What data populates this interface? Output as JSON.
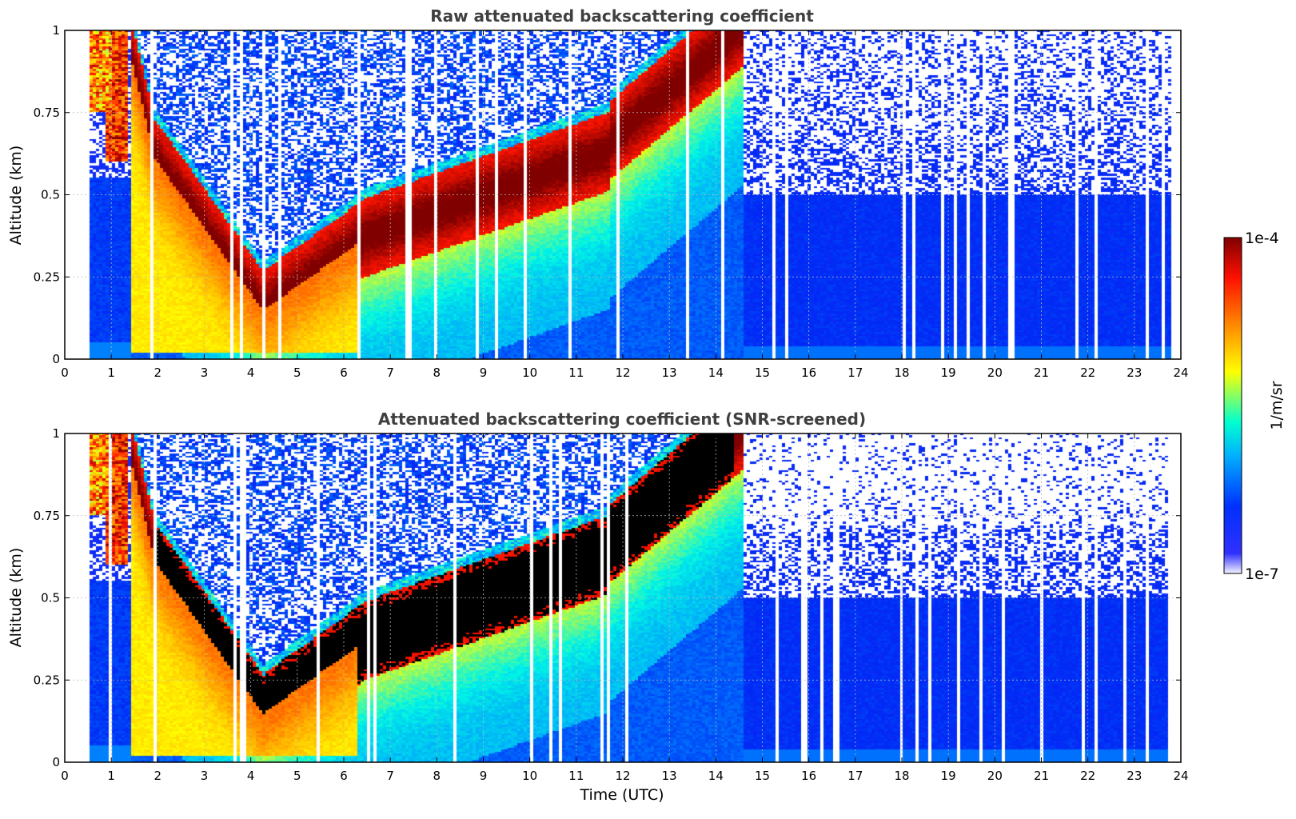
{
  "chart_data": [
    {
      "type": "heatmap",
      "title": "Raw attenuated backscattering coefficient",
      "xlabel": "",
      "ylabel": "Altitude (km)",
      "xlim": [
        0,
        24
      ],
      "ylim": [
        0,
        1
      ],
      "xticks": [
        "0",
        "1",
        "2",
        "3",
        "4",
        "5",
        "6",
        "7",
        "8",
        "9",
        "10",
        "11",
        "12",
        "13",
        "14",
        "15",
        "16",
        "17",
        "18",
        "19",
        "20",
        "21",
        "22",
        "23",
        "24"
      ],
      "yticks": [
        "0",
        "0.25",
        "0.5",
        "0.75",
        "1"
      ],
      "grid": true,
      "screened": false
    },
    {
      "type": "heatmap",
      "title": "Attenuated backscattering coefficient (SNR-screened)",
      "xlabel": "Time (UTC)",
      "ylabel": "Altitude (km)",
      "xlim": [
        0,
        24
      ],
      "ylim": [
        0,
        1
      ],
      "xticks": [
        "0",
        "1",
        "2",
        "3",
        "4",
        "5",
        "6",
        "7",
        "8",
        "9",
        "10",
        "11",
        "12",
        "13",
        "14",
        "15",
        "16",
        "17",
        "18",
        "19",
        "20",
        "21",
        "22",
        "23",
        "24"
      ],
      "yticks": [
        "0",
        "0.25",
        "0.5",
        "0.75",
        "1"
      ],
      "grid": true,
      "screened": true
    }
  ],
  "colorbar": {
    "label": "1/m/sr",
    "max_label": "1e-4",
    "min_label": "1e-7",
    "colors": [
      "#ffffff",
      "#0000ff",
      "#00ffff",
      "#ffff00",
      "#ff0000",
      "#800000"
    ]
  }
}
